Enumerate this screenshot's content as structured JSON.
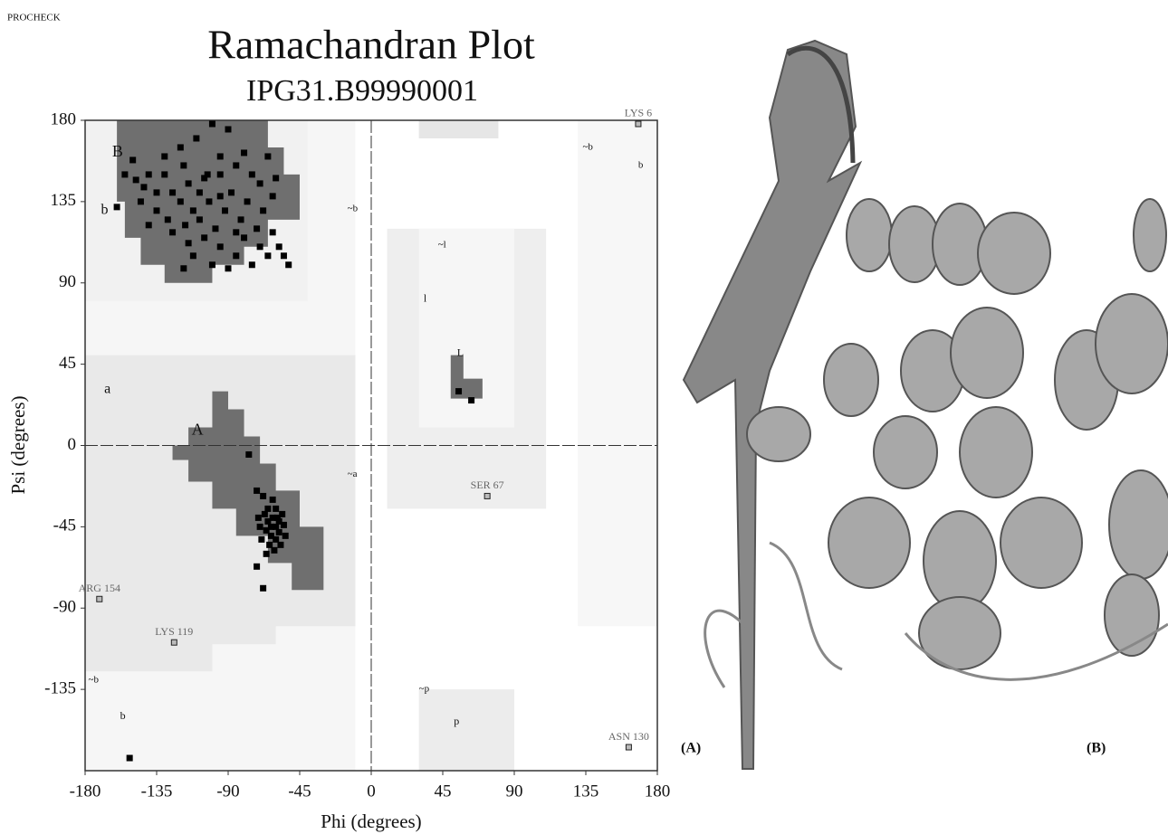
{
  "header": "PROCHECK",
  "panels": [
    "(A)",
    "(B)"
  ],
  "chart_data": {
    "type": "scatter",
    "title": "Ramachandran Plot",
    "subtitle": "IPG31.B99990001",
    "x_label": "Phi (degrees)",
    "y_label": "Psi (degrees)",
    "xlim": [
      -180,
      180
    ],
    "ylim": [
      -180,
      180
    ],
    "xticks": [
      -180,
      -135,
      -90,
      -45,
      0,
      45,
      90,
      135,
      180
    ],
    "yticks": [
      -135,
      -90,
      -45,
      0,
      45,
      90,
      135,
      180
    ],
    "color": "#000000",
    "x": [
      -100,
      -110,
      -95,
      -118,
      -130,
      -140,
      -148,
      -135,
      -125,
      -115,
      -105,
      -95,
      -85,
      -75,
      -70,
      -60,
      -65,
      -80,
      -120,
      -150,
      -155,
      -145,
      -135,
      -128,
      -120,
      -112,
      -108,
      -102,
      -98,
      -92,
      -88,
      -82,
      -78,
      -72,
      -68,
      -62,
      -58,
      -55,
      -52,
      -65,
      -75,
      -85,
      -95,
      -105,
      -115,
      -125,
      -140,
      -112,
      -100,
      -118,
      -90,
      -80,
      -108,
      -130,
      -90,
      -103,
      -117,
      -95,
      -85,
      -70,
      -143,
      -62,
      -60,
      -62,
      -65,
      -58,
      -63,
      -67,
      -55,
      -60,
      -64,
      -57,
      -61,
      -66,
      -70,
      -59,
      -62,
      -68,
      -72,
      -65,
      -56,
      -60,
      -66,
      -54,
      -63,
      -58,
      -69,
      -71,
      -77,
      -160,
      -152,
      -72,
      -68,
      55,
      63
    ],
    "values": [
      178,
      170,
      160,
      155,
      150,
      150,
      147,
      140,
      140,
      145,
      148,
      150,
      155,
      150,
      145,
      148,
      160,
      162,
      165,
      158,
      150,
      135,
      130,
      125,
      135,
      130,
      125,
      135,
      120,
      130,
      140,
      125,
      135,
      120,
      130,
      118,
      110,
      105,
      100,
      105,
      100,
      105,
      110,
      115,
      112,
      118,
      122,
      105,
      100,
      98,
      98,
      115,
      140,
      160,
      175,
      150,
      122,
      138,
      118,
      110,
      143,
      138,
      -45,
      -40,
      -42,
      -48,
      -50,
      -38,
      -44,
      -35,
      -55,
      -55,
      -58,
      -47,
      -45,
      -40,
      -30,
      -28,
      -25,
      -35,
      -38,
      -52,
      -60,
      -50,
      -45,
      -42,
      -52,
      -40,
      -5,
      132,
      -173,
      -67,
      -79,
      30,
      25
    ],
    "annotations": [
      {
        "text": "LYS 6",
        "x": 168,
        "y": 178
      },
      {
        "text": "SER 67",
        "x": 73,
        "y": -28
      },
      {
        "text": "ARG 154",
        "x": -171,
        "y": -85
      },
      {
        "text": "LYS 119",
        "x": -124,
        "y": -109
      },
      {
        "text": "ASN 130",
        "x": 162,
        "y": -167
      }
    ],
    "region_labels": [
      "B",
      "b",
      "A",
      "a",
      "~b",
      "~a",
      "~l",
      "l",
      "L",
      "~b",
      "b",
      "~b",
      "b",
      "~p",
      "p"
    ]
  }
}
